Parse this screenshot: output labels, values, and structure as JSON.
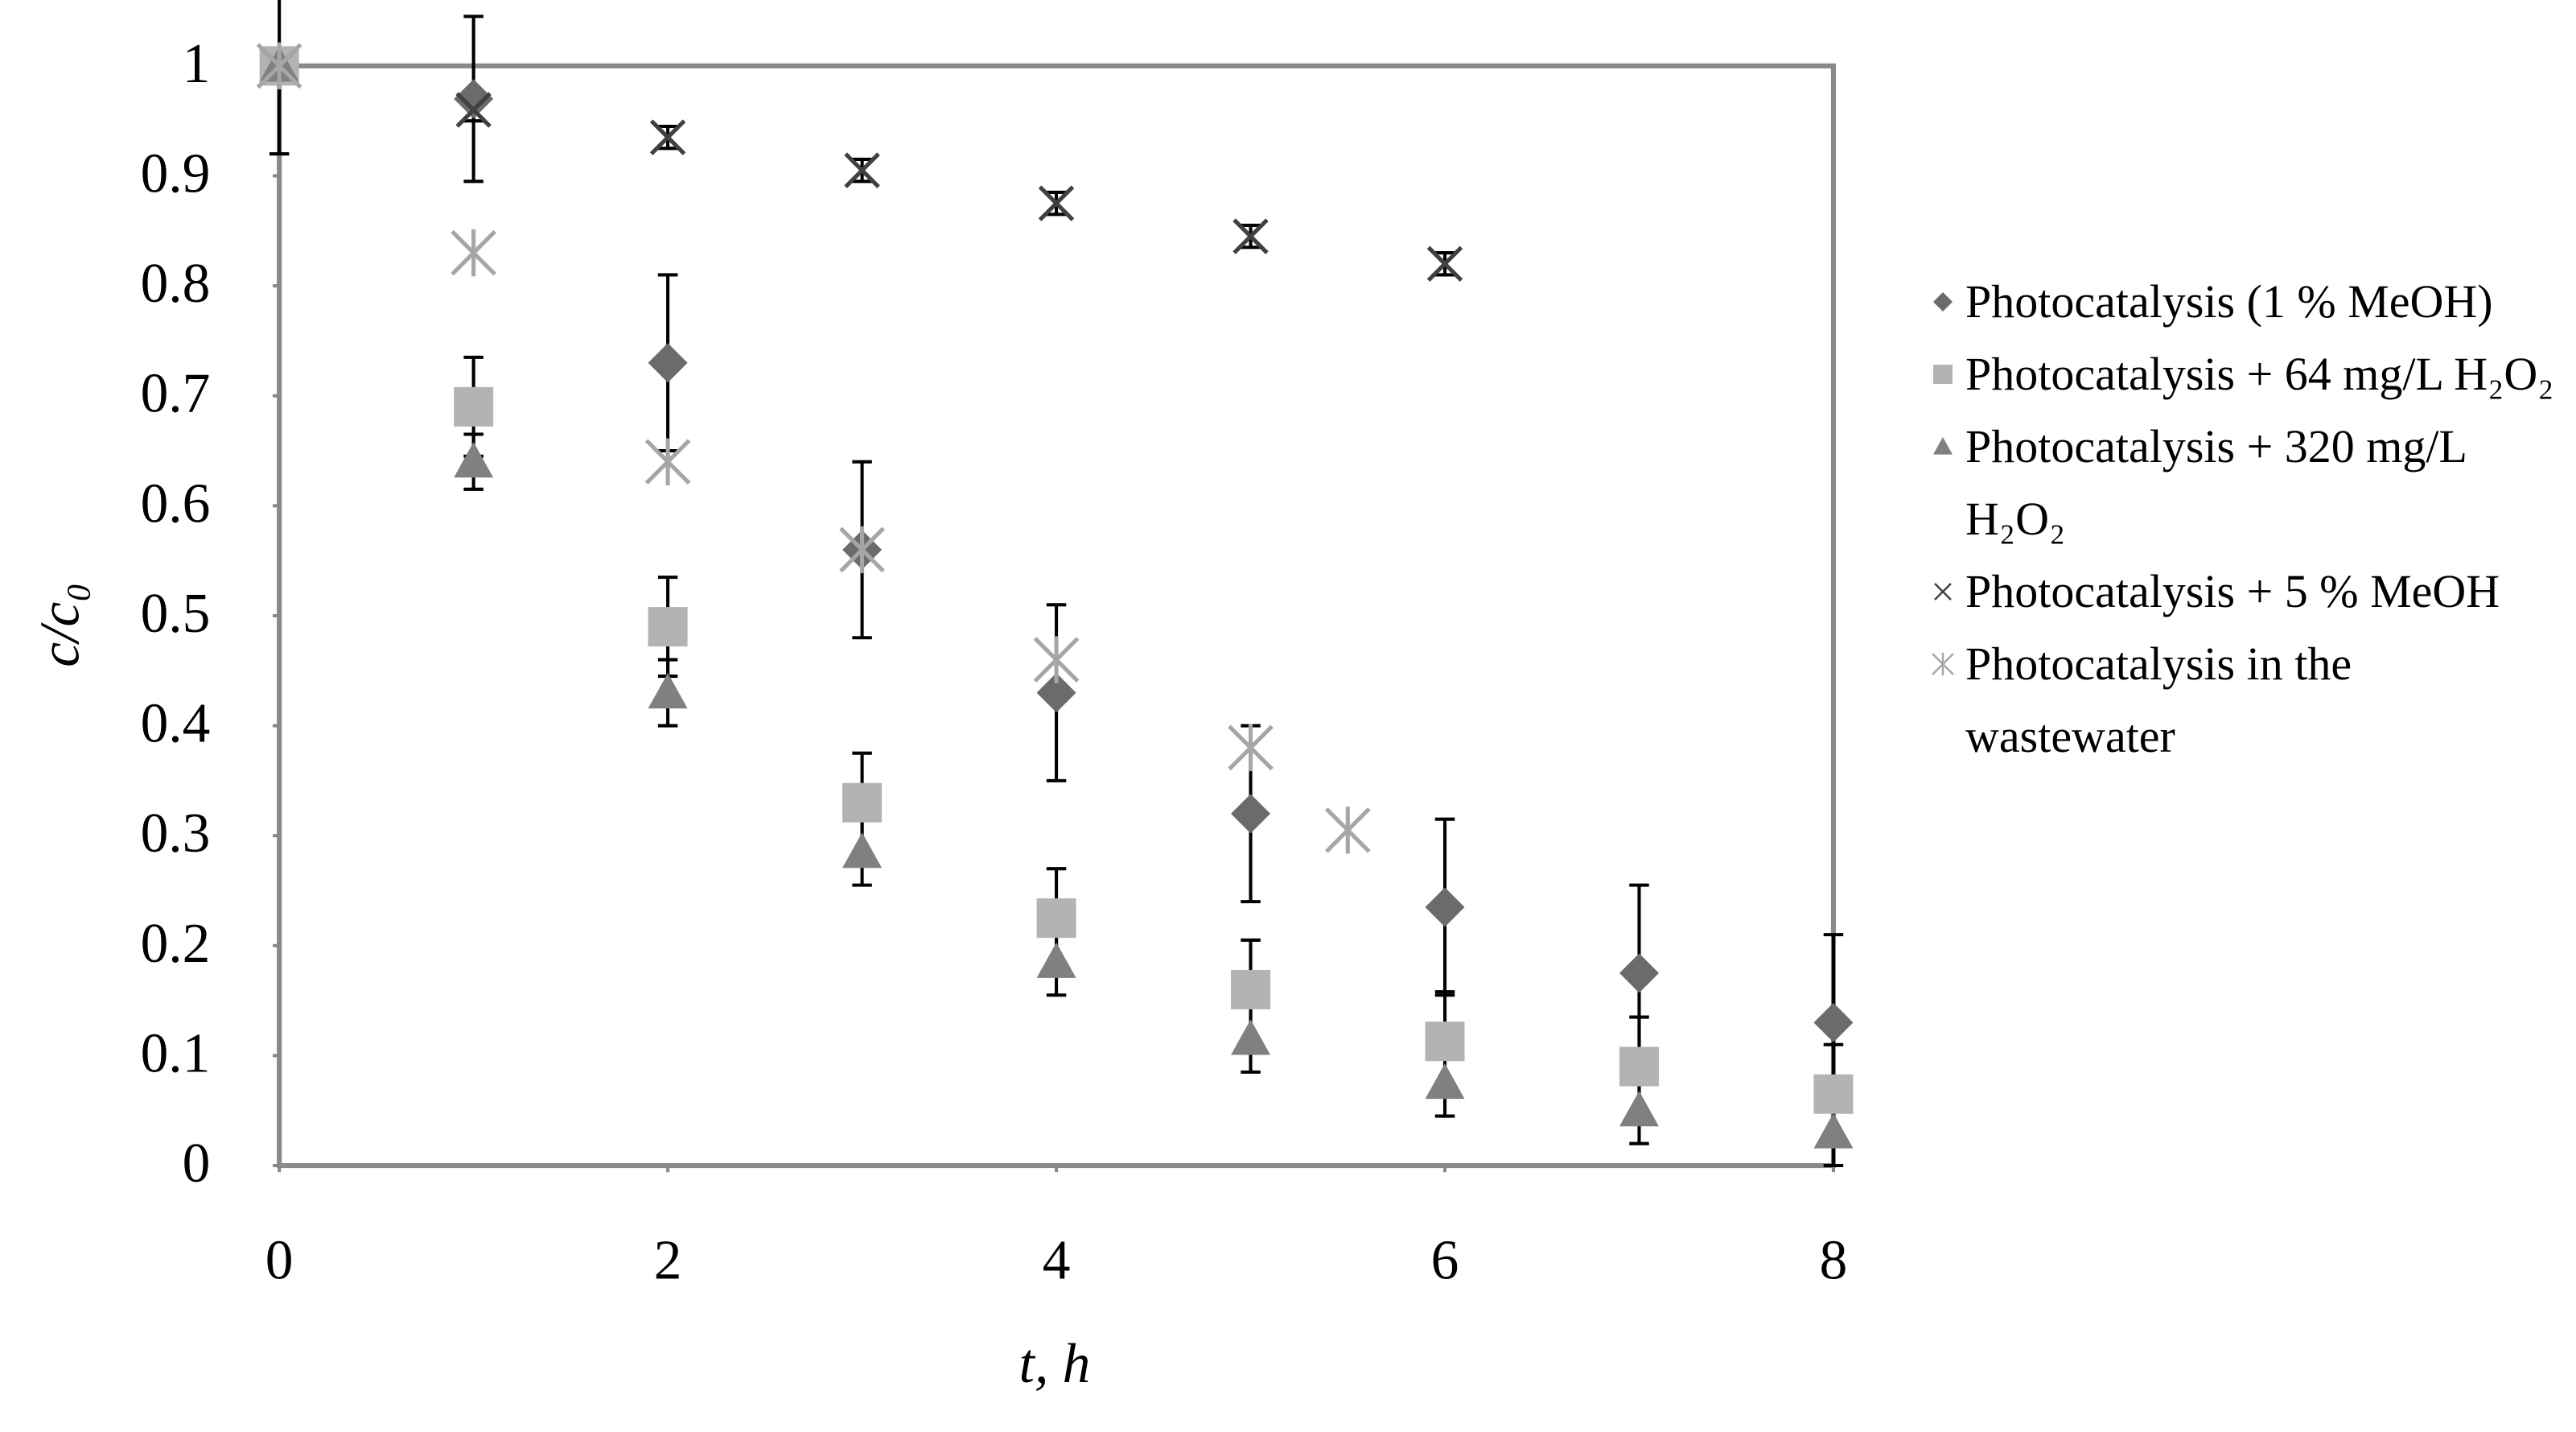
{
  "chart_data": {
    "type": "scatter",
    "x_label": "t, h",
    "y_label": "c/c₀",
    "xlim": [
      0,
      8
    ],
    "xticks": [
      0,
      2,
      4,
      6,
      8
    ],
    "ylim": [
      0,
      1
    ],
    "yticks": [
      0,
      0.1,
      0.2,
      0.3,
      0.4,
      0.5,
      0.6,
      0.7,
      0.8,
      0.9,
      1
    ],
    "grid": false,
    "legend": "right",
    "series": [
      {
        "name": "Photocatalysis (1 % MeOH)",
        "color": "#6b6b6b",
        "marker": "diamond",
        "x": [
          0,
          1,
          2,
          3,
          4,
          5,
          6,
          7,
          8
        ],
        "values": [
          1,
          0.97,
          0.73,
          0.56,
          0.43,
          0.32,
          0.235,
          0.175,
          0.13
        ],
        "errors": [
          0.08,
          0.075,
          0.08,
          0.08,
          0.08,
          0.08,
          0.08,
          0.08,
          0.08
        ]
      },
      {
        "name": "Photocatalysis + 64 mg/L H₂O₂",
        "color": "#b3b3b3",
        "marker": "square",
        "x": [
          0,
          1,
          2,
          3,
          4,
          5,
          6,
          7,
          8
        ],
        "values": [
          1,
          0.69,
          0.49,
          0.33,
          0.225,
          0.16,
          0.113,
          0.09,
          0.065
        ],
        "errors": [
          0.01,
          0.045,
          0.045,
          0.045,
          0.045,
          0.045,
          0.045,
          0.045,
          0.045
        ]
      },
      {
        "name": "Photocatalysis + 320 mg/L H₂O₂",
        "color": "#808080",
        "marker": "triangle",
        "x": [
          0,
          1,
          2,
          3,
          4,
          5,
          6,
          7,
          8
        ],
        "values": [
          1,
          0.64,
          0.43,
          0.285,
          0.185,
          0.115,
          0.075,
          0.05,
          0.03
        ],
        "errors": [
          0.01,
          0.025,
          0.03,
          0.03,
          0.03,
          0.03,
          0.03,
          0.03,
          0.03
        ]
      },
      {
        "name": "Photocatalysis + 5 % MeOH",
        "color": "#404040",
        "marker": "x",
        "x": [
          0,
          1,
          2,
          3,
          4,
          5,
          6
        ],
        "values": [
          1,
          0.96,
          0.935,
          0.905,
          0.875,
          0.845,
          0.82
        ],
        "errors": [
          0.01,
          0.01,
          0.01,
          0.01,
          0.01,
          0.01,
          0.01
        ]
      },
      {
        "name": "Photocatalysis in the wastewater",
        "color": "#a6a6a6",
        "marker": "asterisk",
        "x": [
          0,
          1,
          2,
          3,
          4,
          5,
          5.5
        ],
        "values": [
          1,
          0.83,
          0.64,
          0.56,
          0.46,
          0.38,
          0.305
        ]
      }
    ]
  }
}
